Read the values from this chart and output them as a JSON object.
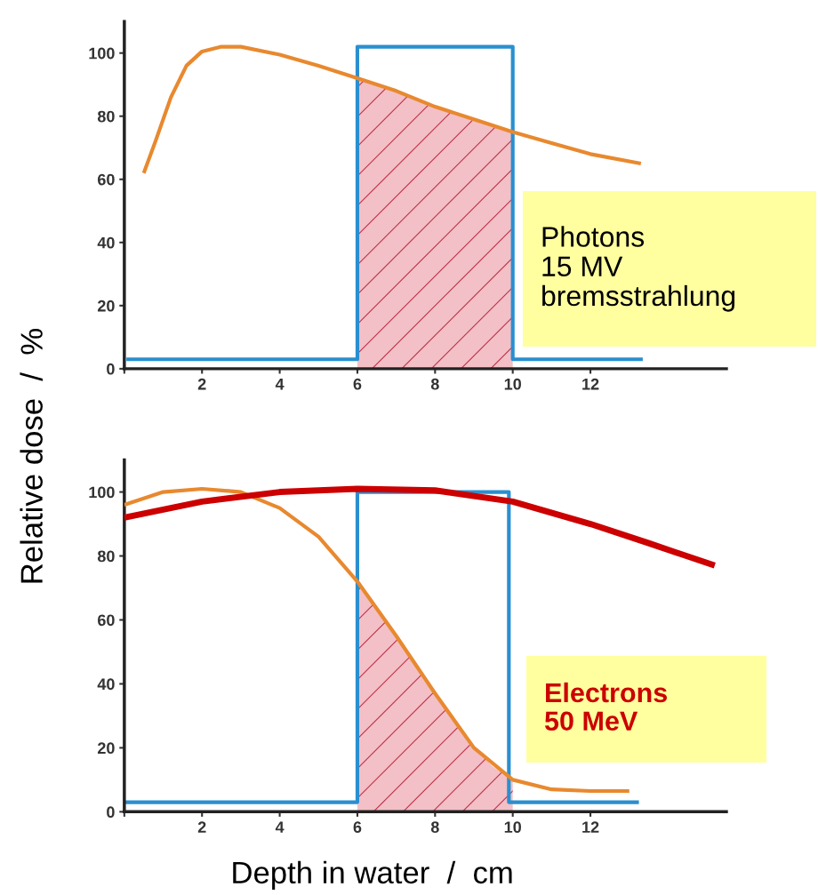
{
  "chart_data": [
    {
      "type": "line",
      "ylabel": "Relative dose  /  %",
      "xlim": [
        0,
        15.5
      ],
      "ylim": [
        0,
        110
      ],
      "xticks": [
        {
          "value": 0,
          "label": null
        },
        2,
        4,
        6,
        8,
        10,
        12
      ],
      "yticks": [
        0,
        20,
        40,
        60,
        80,
        100
      ],
      "grid": false,
      "legend": false,
      "annotations": [
        "Photons\n15 MV\nbremsstrahlung"
      ],
      "series": [
        {
          "type": "area",
          "color": "#f2c0c6",
          "x": [
            6,
            7,
            8,
            9,
            10
          ],
          "values": [
            92,
            88,
            83,
            79,
            75
          ]
        },
        {
          "type": "step",
          "color": "#2a8fd0",
          "x": [
            0.1,
            6,
            10,
            13.3
          ],
          "values": [
            3,
            102,
            3,
            3
          ]
        },
        {
          "color": "#e8892f",
          "x": [
            0.5,
            0.8,
            1.2,
            1.6,
            2,
            2.5,
            3,
            4,
            5,
            6,
            7,
            8,
            9,
            10,
            11,
            12,
            13.3
          ],
          "values": [
            62,
            72,
            86,
            96,
            100.5,
            102,
            102,
            99.5,
            96,
            92,
            88,
            83,
            79,
            75,
            71.5,
            68,
            65
          ]
        }
      ]
    },
    {
      "type": "line",
      "xlabel": "Depth in water  /  cm",
      "xlim": [
        0,
        15.5
      ],
      "ylim": [
        0,
        110
      ],
      "xticks": [
        {
          "value": 0,
          "label": null
        },
        2,
        4,
        6,
        8,
        10,
        12
      ],
      "yticks": [
        0,
        20,
        40,
        60,
        80,
        100
      ],
      "grid": false,
      "legend": false,
      "annotations": [
        "Electrons\n50 MeV"
      ],
      "series": [
        {
          "type": "area",
          "color": "#f2c0c6",
          "x": [
            6,
            6.5,
            7,
            7.5,
            8,
            8.5,
            9,
            9.5,
            10
          ],
          "values": [
            72,
            64,
            55,
            46,
            37,
            28,
            20,
            14,
            10
          ]
        },
        {
          "type": "step",
          "color": "#2a8fd0",
          "x": [
            0,
            6,
            9.9,
            13.2
          ],
          "values": [
            3,
            100,
            3,
            3
          ]
        },
        {
          "color": "#e8892f",
          "x": [
            0,
            1,
            2,
            3,
            4,
            5,
            6,
            7,
            8,
            9,
            10,
            11,
            12,
            13
          ],
          "values": [
            96,
            100,
            101,
            100,
            95,
            86,
            72,
            55,
            37,
            20,
            10,
            7,
            6.5,
            6.5
          ]
        },
        {
          "color": "#cc0000",
          "x": [
            0,
            2,
            4,
            6,
            8,
            10,
            12,
            13.5,
            15.2
          ],
          "values": [
            92,
            97,
            100,
            101,
            100.5,
            97,
            90,
            84,
            77
          ]
        }
      ]
    }
  ]
}
